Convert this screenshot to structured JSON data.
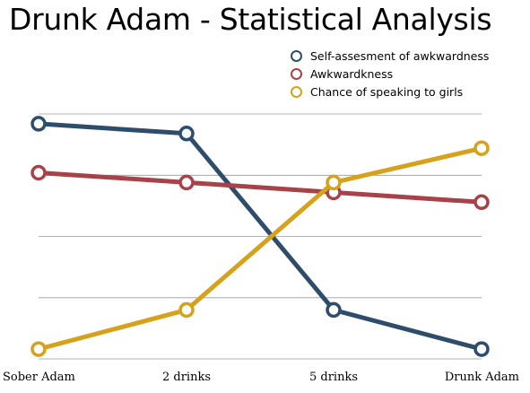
{
  "chart_data": {
    "type": "line",
    "title": "Drunk Adam - Statistical Analysis",
    "categories": [
      "Sober Adam",
      "2 drinks",
      "5 drinks",
      "Drunk Adam"
    ],
    "ylim": [
      0,
      100
    ],
    "grid": true,
    "legend_position": "top-right",
    "series": [
      {
        "name": "Self-assesment of awkwardness",
        "color": "#2e4d6b",
        "values": [
          96,
          92,
          20,
          4
        ]
      },
      {
        "name": "Awkwardkness",
        "color": "#a8424a",
        "values": [
          76,
          72,
          68,
          64
        ]
      },
      {
        "name": "Chance of speaking to girls",
        "color": "#d6a21c",
        "values": [
          4,
          20,
          72,
          86
        ]
      }
    ]
  }
}
